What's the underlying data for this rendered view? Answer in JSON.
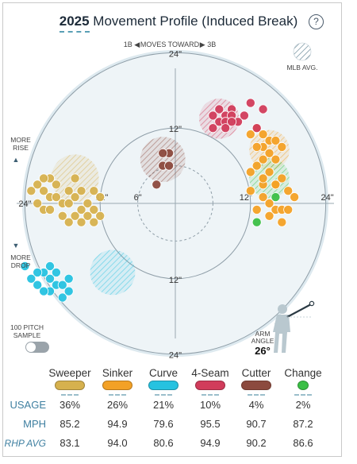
{
  "header": {
    "year": "2025",
    "title": "Movement Profile (Induced Break)",
    "help_label": "?"
  },
  "labels": {
    "moves_toward_left": "1B ◀",
    "moves_toward": "MOVES TOWARD",
    "moves_toward_right": "▶ 3B",
    "mlb_avg": "MLB AVG.",
    "more_rise_1": "MORE",
    "more_rise_2": "RISE",
    "more_drop_1": "MORE",
    "more_drop_2": "DROP",
    "sample_1": "100 PITCH",
    "sample_2": "SAMPLE",
    "arm_angle_1": "ARM",
    "arm_angle_2": "ANGLE",
    "arm_angle_value": "26°"
  },
  "chart_data": {
    "type": "scatter",
    "x_range": [
      -30,
      30
    ],
    "y_range": [
      -30,
      30
    ],
    "rings": [
      6,
      12,
      24
    ],
    "ring_labels_x": [
      "24\"",
      "12\"",
      "6\"",
      "12\"",
      "24\""
    ],
    "ring_labels_y": [
      "24\"",
      "12\"",
      "12\"",
      "24\""
    ],
    "series": [
      {
        "name": "Sweeper",
        "color": "#d6b14e",
        "avg": [
          -16,
          4
        ],
        "avg_r": 3.8,
        "points": [
          [
            -23,
            2
          ],
          [
            -22,
            3
          ],
          [
            -21,
            2
          ],
          [
            -20,
            1
          ],
          [
            -22,
            0
          ],
          [
            -21,
            -1
          ],
          [
            -20,
            -1
          ],
          [
            -19,
            3
          ],
          [
            -18,
            0
          ],
          [
            -17,
            2
          ],
          [
            -16,
            1
          ],
          [
            -15,
            2
          ],
          [
            -17,
            0
          ],
          [
            -18,
            -2
          ],
          [
            -16,
            -2
          ],
          [
            -15,
            -1
          ],
          [
            -14,
            0
          ],
          [
            -13,
            2
          ],
          [
            -12,
            1
          ],
          [
            -13,
            -1
          ],
          [
            -14,
            -2
          ],
          [
            -12,
            -2
          ],
          [
            -15,
            -3
          ],
          [
            -13,
            -3
          ],
          [
            -19,
            1
          ],
          [
            -17,
            -3
          ],
          [
            -16,
            4
          ],
          [
            -20,
            4
          ],
          [
            -21,
            4
          ]
        ]
      },
      {
        "name": "Sinker",
        "color": "#f3a126",
        "avg": [
          15,
          8.5
        ],
        "avg_r": 3.2,
        "points": [
          [
            12,
            11
          ],
          [
            13,
            12
          ],
          [
            14,
            11
          ],
          [
            15,
            10
          ],
          [
            14,
            9
          ],
          [
            16,
            10
          ],
          [
            13,
            9
          ],
          [
            15,
            8
          ],
          [
            17,
            9
          ],
          [
            14,
            7
          ],
          [
            16,
            7
          ],
          [
            13,
            6
          ],
          [
            15,
            5
          ],
          [
            12,
            5
          ],
          [
            14,
            3
          ],
          [
            16,
            3
          ],
          [
            17,
            4
          ],
          [
            18,
            2
          ],
          [
            19,
            1
          ],
          [
            14,
            1
          ],
          [
            15,
            0
          ],
          [
            16,
            -1
          ],
          [
            17,
            -1
          ],
          [
            12,
            2
          ],
          [
            13,
            -1
          ],
          [
            15,
            -2
          ],
          [
            18,
            -1
          ],
          [
            17,
            -3
          ],
          [
            16,
            3
          ],
          [
            14,
            4
          ]
        ]
      },
      {
        "name": "Curve",
        "color": "#26c2e0",
        "avg": [
          -10,
          -11
        ],
        "avg_r": 3.6,
        "points": [
          [
            -24,
            -10
          ],
          [
            -23,
            -12
          ],
          [
            -22,
            -13
          ],
          [
            -21,
            -11
          ],
          [
            -20,
            -12
          ],
          [
            -19,
            -13
          ],
          [
            -20,
            -14
          ],
          [
            -18,
            -13
          ],
          [
            -17,
            -12
          ],
          [
            -19,
            -11
          ],
          [
            -21,
            -14
          ],
          [
            -18,
            -15
          ],
          [
            -22,
            -11
          ],
          [
            -17,
            -14
          ],
          [
            -20,
            -10
          ]
        ]
      },
      {
        "name": "4-Seam",
        "color": "#d13c5b",
        "avg": [
          7,
          13.5
        ],
        "avg_r": 3.2,
        "points": [
          [
            6,
            14
          ],
          [
            7,
            15
          ],
          [
            8,
            14
          ],
          [
            9,
            15
          ],
          [
            7,
            13
          ],
          [
            8,
            13
          ],
          [
            9,
            14
          ],
          [
            10,
            13
          ],
          [
            6,
            12
          ],
          [
            8,
            12
          ],
          [
            11,
            14
          ],
          [
            12,
            16
          ],
          [
            13,
            12
          ],
          [
            14,
            15
          ],
          [
            9,
            13
          ]
        ]
      },
      {
        "name": "Cutter",
        "color": "#8c4a3e",
        "avg": [
          -2,
          7
        ],
        "avg_r": 3.6,
        "points": [
          [
            -2,
            6
          ],
          [
            -1,
            6
          ],
          [
            -1,
            8
          ],
          [
            -2,
            8
          ],
          [
            -3,
            3
          ]
        ]
      },
      {
        "name": "Change",
        "color": "#3bbf46",
        "avg": [
          15,
          4
        ],
        "avg_r": 3.2,
        "points": [
          [
            13,
            -3
          ],
          [
            16,
            1
          ]
        ]
      }
    ]
  },
  "table": {
    "pitches": [
      "Sweeper",
      "Sinker",
      "Curve",
      "4-Seam",
      "Cutter",
      "Change"
    ],
    "colors": [
      "#d6b14e",
      "#f3a126",
      "#26c2e0",
      "#d13c5b",
      "#8c4a3e",
      "#3bbf46"
    ],
    "usage_label": "USAGE",
    "mph_label": "MPH",
    "rhp_label": "RHP AVG",
    "usage": [
      "36%",
      "26%",
      "21%",
      "10%",
      "4%",
      "2%"
    ],
    "mph": [
      "85.2",
      "94.9",
      "79.6",
      "95.5",
      "90.7",
      "87.2"
    ],
    "rhp_avg": [
      "83.1",
      "94.0",
      "80.6",
      "94.9",
      "90.2",
      "86.6"
    ]
  }
}
